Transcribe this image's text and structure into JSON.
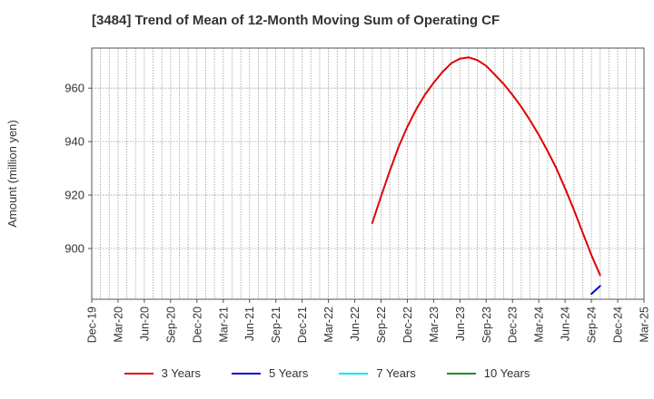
{
  "header": {
    "title": "[3484]  Trend of Mean of 12-Month Moving Sum of Operating CF"
  },
  "chart_data": {
    "type": "line",
    "title": "[3484]  Trend of Mean of 12-Month Moving Sum of Operating CF",
    "ylabel": "Amount (million yen)",
    "xlabel": "",
    "x_tick_labels": [
      "Dec-19",
      "Mar-20",
      "Jun-20",
      "Sep-20",
      "Dec-20",
      "Mar-21",
      "Jun-21",
      "Sep-21",
      "Dec-21",
      "Mar-22",
      "Jun-22",
      "Sep-22",
      "Dec-22",
      "Mar-23",
      "Jun-23",
      "Sep-23",
      "Dec-23",
      "Mar-24",
      "Jun-24",
      "Sep-24",
      "Dec-24",
      "Mar-25"
    ],
    "y_ticks": [
      900,
      920,
      940,
      960
    ],
    "ylim": [
      881,
      975
    ],
    "xlim": [
      "2019-12",
      "2025-03"
    ],
    "grid": true,
    "legend_position": "bottom",
    "series": [
      {
        "name": "3 Years",
        "color": "#e00000",
        "points": [
          [
            "2022-08",
            909.5
          ],
          [
            "2022-09",
            919.5
          ],
          [
            "2022-10",
            929.0
          ],
          [
            "2022-11",
            938.0
          ],
          [
            "2022-12",
            945.5
          ],
          [
            "2023-01",
            952.0
          ],
          [
            "2023-02",
            957.5
          ],
          [
            "2023-03",
            962.0
          ],
          [
            "2023-04",
            966.0
          ],
          [
            "2023-05",
            969.3
          ],
          [
            "2023-06",
            971.0
          ],
          [
            "2023-07",
            971.5
          ],
          [
            "2023-08",
            970.5
          ],
          [
            "2023-09",
            968.3
          ],
          [
            "2023-10",
            965.0
          ],
          [
            "2023-11",
            961.5
          ],
          [
            "2023-12",
            957.5
          ],
          [
            "2024-01",
            953.0
          ],
          [
            "2024-02",
            948.0
          ],
          [
            "2024-03",
            942.5
          ],
          [
            "2024-04",
            936.5
          ],
          [
            "2024-05",
            930.0
          ],
          [
            "2024-06",
            922.5
          ],
          [
            "2024-07",
            914.5
          ],
          [
            "2024-08",
            906.0
          ],
          [
            "2024-09",
            897.5
          ],
          [
            "2024-10",
            890.0
          ]
        ]
      },
      {
        "name": "5 Years",
        "color": "#0000cc",
        "points": [
          [
            "2024-09",
            883.0
          ],
          [
            "2024-10",
            886.0
          ]
        ]
      },
      {
        "name": "7 Years",
        "color": "#00e5ee",
        "points": []
      },
      {
        "name": "10 Years",
        "color": "#228b22",
        "points": []
      }
    ]
  }
}
